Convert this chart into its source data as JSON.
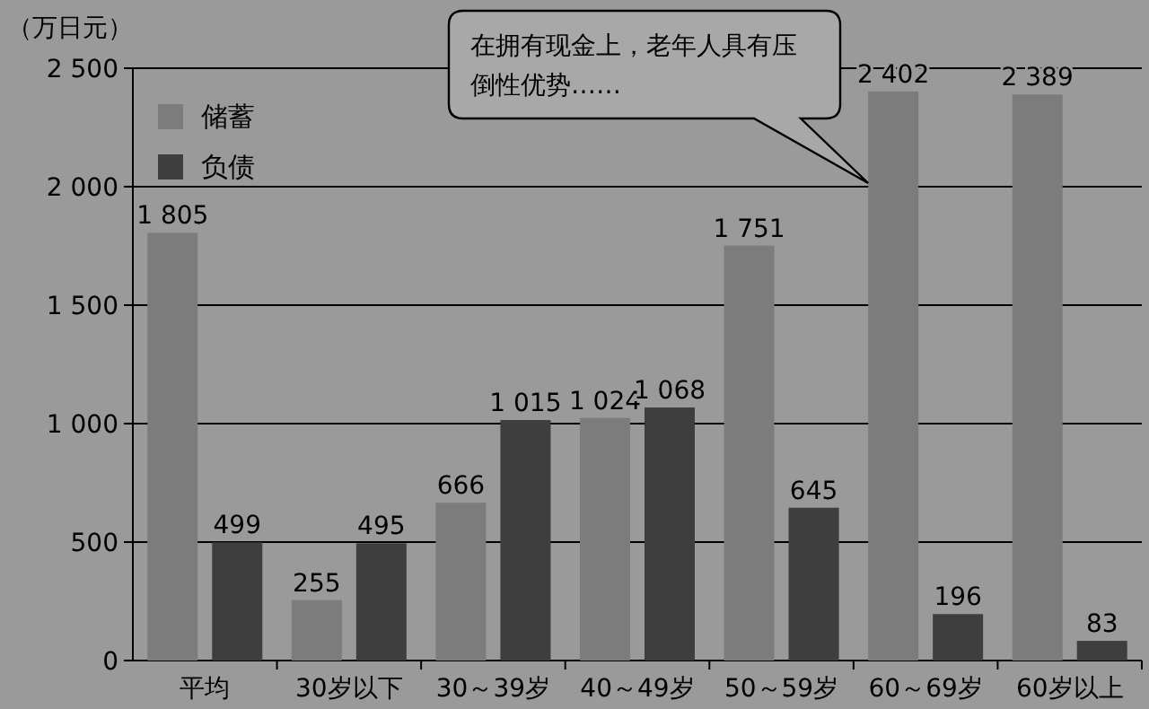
{
  "chart_data": {
    "type": "bar",
    "ylabel": "（万日元）",
    "categories": [
      "平均",
      "30岁以下",
      "30～39岁",
      "40～49岁",
      "50～59岁",
      "60～69岁",
      "60岁以上"
    ],
    "series": [
      {
        "name": "储蓄",
        "color": "#7c7c7c",
        "values": [
          1805,
          255,
          666,
          1024,
          1751,
          2402,
          2389
        ],
        "value_labels": [
          "1 805",
          "255",
          "666",
          "1 024",
          "1 751",
          "2 402",
          "2 389"
        ]
      },
      {
        "name": "负债",
        "color": "#3e3e3e",
        "values": [
          499,
          495,
          1015,
          1068,
          645,
          196,
          83
        ],
        "value_labels": [
          "499",
          "495",
          "1 015",
          "1 068",
          "645",
          "196",
          "83"
        ]
      }
    ],
    "ylim": [
      0,
      2500
    ],
    "yticks": [
      0,
      {
        "value": 500,
        "label": "500"
      },
      {
        "value": 1000,
        "label": "1 000"
      },
      {
        "value": 1500,
        "label": "1 500"
      },
      {
        "value": 2000,
        "label": "2 000"
      },
      {
        "value": 2500,
        "label": "2 500"
      }
    ],
    "grid": "y",
    "legend": "top left",
    "annotations": [
      "在拥有现金上，老年人具有压倒性优势……"
    ]
  }
}
